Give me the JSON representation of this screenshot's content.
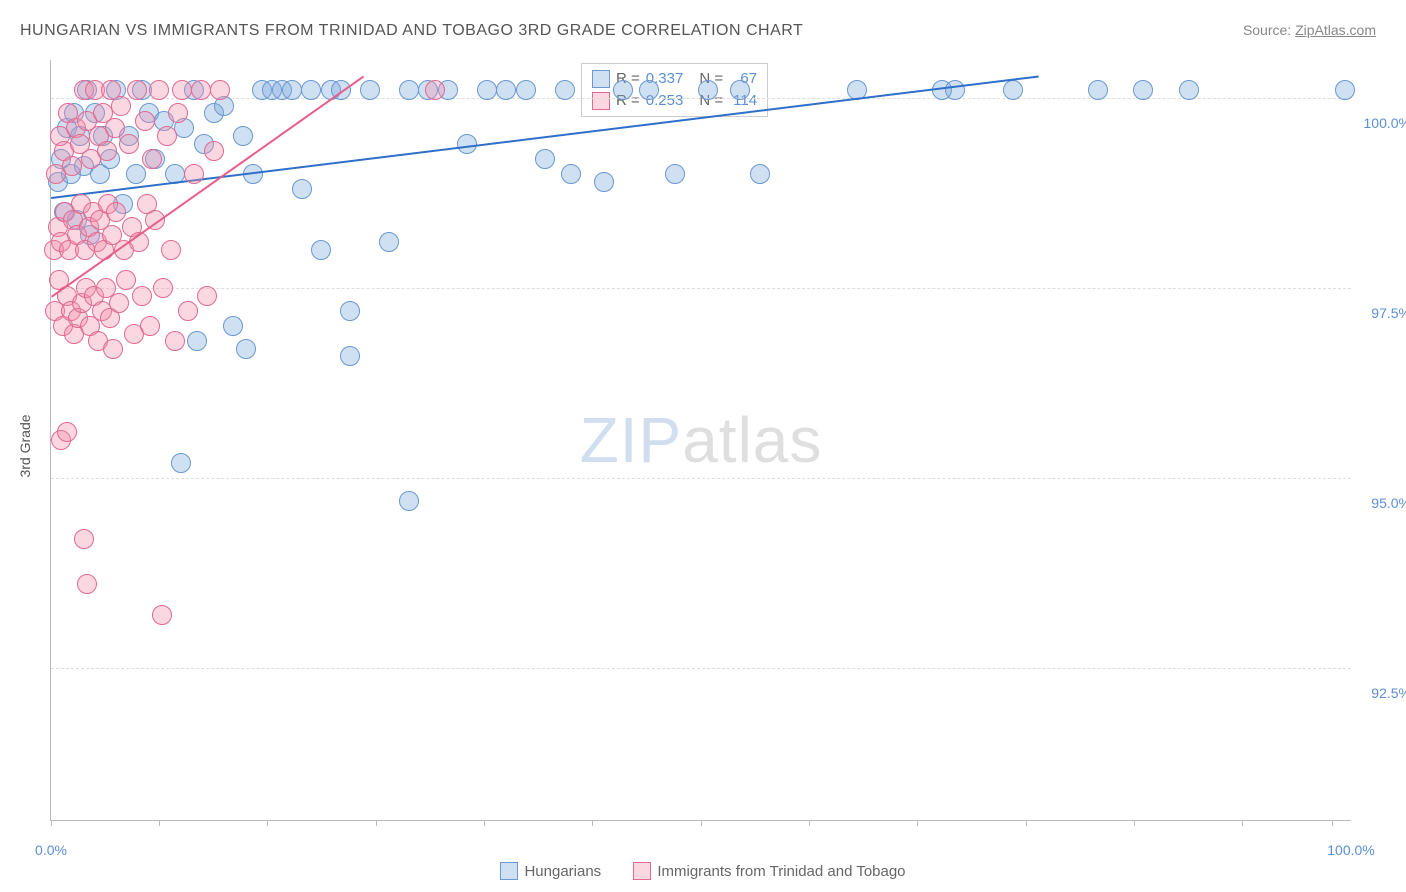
{
  "title": "HUNGARIAN VS IMMIGRANTS FROM TRINIDAD AND TOBAGO 3RD GRADE CORRELATION CHART",
  "source_label": "Source: ",
  "source_link_text": "ZipAtlas.com",
  "ylabel": "3rd Grade",
  "watermark_a": "ZIP",
  "watermark_b": "atlas",
  "chart": {
    "type": "scatter",
    "background_color": "#ffffff",
    "grid_color": "#dddddd",
    "axis_color": "#bbbbbb",
    "tick_label_color": "#5b8fd6",
    "label_color": "#555555",
    "xlim": [
      0,
      100
    ],
    "ylim": [
      90.5,
      100.5
    ],
    "yticks": [
      {
        "v": 100.0,
        "label": "100.0%"
      },
      {
        "v": 97.5,
        "label": "97.5%"
      },
      {
        "v": 95.0,
        "label": "95.0%"
      },
      {
        "v": 92.5,
        "label": "92.5%"
      }
    ],
    "xtick_positions": [
      0,
      8.3,
      16.6,
      25,
      33.3,
      41.6,
      50,
      58.3,
      66.6,
      75,
      83.3,
      91.6,
      98.5
    ],
    "xaxis_labels": [
      {
        "v": 0,
        "label": "0.0%"
      },
      {
        "v": 100,
        "label": "100.0%"
      }
    ],
    "marker_radius": 9,
    "marker_border_width": 1.5,
    "trend_line_width": 2
  },
  "series": [
    {
      "name": "Hungarians",
      "fill": "rgba(120,165,220,0.35)",
      "stroke": "#6a98d0",
      "trend_color": "#2e6fc9",
      "R": "0.337",
      "N": "67",
      "trend": {
        "x1": 0,
        "y1": 98.7,
        "x2": 76,
        "y2": 100.3
      },
      "points": [
        [
          0.5,
          98.9
        ],
        [
          0.8,
          99.2
        ],
        [
          1.0,
          98.5
        ],
        [
          1.2,
          99.6
        ],
        [
          1.5,
          99.0
        ],
        [
          1.8,
          99.8
        ],
        [
          2.0,
          98.4
        ],
        [
          2.2,
          99.5
        ],
        [
          2.5,
          99.1
        ],
        [
          2.8,
          100.1
        ],
        [
          3.0,
          98.2
        ],
        [
          3.4,
          99.8
        ],
        [
          3.8,
          99.0
        ],
        [
          4.0,
          99.5
        ],
        [
          4.5,
          99.2
        ],
        [
          5.0,
          100.1
        ],
        [
          5.5,
          98.6
        ],
        [
          6.0,
          99.5
        ],
        [
          6.5,
          99.0
        ],
        [
          7.0,
          100.1
        ],
        [
          7.5,
          99.8
        ],
        [
          8.0,
          99.2
        ],
        [
          8.7,
          99.7
        ],
        [
          9.5,
          99.0
        ],
        [
          10.2,
          99.6
        ],
        [
          11.0,
          100.1
        ],
        [
          11.8,
          99.4
        ],
        [
          12.5,
          99.8
        ],
        [
          13.3,
          99.9
        ],
        [
          14.0,
          97.0
        ],
        [
          14.8,
          99.5
        ],
        [
          15.5,
          99.0
        ],
        [
          16.2,
          100.1
        ],
        [
          17.0,
          100.1
        ],
        [
          17.8,
          100.1
        ],
        [
          18.5,
          100.1
        ],
        [
          19.3,
          98.8
        ],
        [
          20.0,
          100.1
        ],
        [
          20.8,
          98.0
        ],
        [
          21.5,
          100.1
        ],
        [
          22.3,
          100.1
        ],
        [
          23.0,
          97.2
        ],
        [
          24.5,
          100.1
        ],
        [
          26.0,
          98.1
        ],
        [
          27.5,
          100.1
        ],
        [
          29.0,
          100.1
        ],
        [
          30.5,
          100.1
        ],
        [
          32.0,
          99.4
        ],
        [
          33.5,
          100.1
        ],
        [
          35.0,
          100.1
        ],
        [
          36.5,
          100.1
        ],
        [
          38.0,
          99.2
        ],
        [
          39.5,
          100.1
        ],
        [
          40.0,
          99.0
        ],
        [
          42.5,
          98.9
        ],
        [
          44.0,
          100.1
        ],
        [
          46.0,
          100.1
        ],
        [
          48.0,
          99.0
        ],
        [
          50.5,
          100.1
        ],
        [
          53.0,
          100.1
        ],
        [
          54.5,
          99.0
        ],
        [
          62.0,
          100.1
        ],
        [
          68.5,
          100.1
        ],
        [
          69.5,
          100.1
        ],
        [
          74.0,
          100.1
        ],
        [
          80.5,
          100.1
        ],
        [
          84.0,
          100.1
        ],
        [
          87.5,
          100.1
        ],
        [
          99.5,
          100.1
        ],
        [
          11.2,
          96.8
        ],
        [
          15.0,
          96.7
        ],
        [
          23.0,
          96.6
        ],
        [
          27.5,
          94.7
        ],
        [
          10.0,
          95.2
        ]
      ]
    },
    {
      "name": "Immigrants from Trinidad and Tobago",
      "fill": "rgba(240,140,170,0.35)",
      "stroke": "#e06a92",
      "trend_color": "#e85d8a",
      "R": "0.253",
      "N": "114",
      "trend": {
        "x1": 0,
        "y1": 97.4,
        "x2": 24,
        "y2": 100.3
      },
      "points": [
        [
          0.2,
          98.0
        ],
        [
          0.3,
          97.2
        ],
        [
          0.4,
          99.0
        ],
        [
          0.5,
          98.3
        ],
        [
          0.6,
          97.6
        ],
        [
          0.7,
          99.5
        ],
        [
          0.8,
          98.1
        ],
        [
          0.9,
          97.0
        ],
        [
          1.0,
          99.3
        ],
        [
          1.1,
          98.5
        ],
        [
          1.2,
          97.4
        ],
        [
          1.3,
          99.8
        ],
        [
          1.4,
          98.0
        ],
        [
          1.5,
          97.2
        ],
        [
          1.6,
          99.1
        ],
        [
          1.7,
          98.4
        ],
        [
          1.8,
          96.9
        ],
        [
          1.9,
          99.6
        ],
        [
          2.0,
          98.2
        ],
        [
          2.1,
          97.1
        ],
        [
          2.2,
          99.4
        ],
        [
          2.3,
          98.6
        ],
        [
          2.4,
          97.3
        ],
        [
          2.5,
          100.1
        ],
        [
          2.6,
          98.0
        ],
        [
          2.7,
          97.5
        ],
        [
          2.8,
          99.7
        ],
        [
          2.9,
          98.3
        ],
        [
          3.0,
          97.0
        ],
        [
          3.1,
          99.2
        ],
        [
          3.2,
          98.5
        ],
        [
          3.3,
          97.4
        ],
        [
          3.4,
          100.1
        ],
        [
          3.5,
          98.1
        ],
        [
          3.6,
          96.8
        ],
        [
          3.7,
          99.5
        ],
        [
          3.8,
          98.4
        ],
        [
          3.9,
          97.2
        ],
        [
          4.0,
          99.8
        ],
        [
          4.1,
          98.0
        ],
        [
          4.2,
          97.5
        ],
        [
          4.3,
          99.3
        ],
        [
          4.4,
          98.6
        ],
        [
          4.5,
          97.1
        ],
        [
          4.6,
          100.1
        ],
        [
          4.7,
          98.2
        ],
        [
          4.8,
          96.7
        ],
        [
          4.9,
          99.6
        ],
        [
          5.0,
          98.5
        ],
        [
          5.2,
          97.3
        ],
        [
          5.4,
          99.9
        ],
        [
          5.6,
          98.0
        ],
        [
          5.8,
          97.6
        ],
        [
          6.0,
          99.4
        ],
        [
          6.2,
          98.3
        ],
        [
          6.4,
          96.9
        ],
        [
          6.6,
          100.1
        ],
        [
          6.8,
          98.1
        ],
        [
          7.0,
          97.4
        ],
        [
          7.2,
          99.7
        ],
        [
          7.4,
          98.6
        ],
        [
          7.6,
          97.0
        ],
        [
          7.8,
          99.2
        ],
        [
          8.0,
          98.4
        ],
        [
          8.3,
          100.1
        ],
        [
          8.6,
          97.5
        ],
        [
          8.9,
          99.5
        ],
        [
          9.2,
          98.0
        ],
        [
          9.5,
          96.8
        ],
        [
          9.8,
          99.8
        ],
        [
          10.1,
          100.1
        ],
        [
          10.5,
          97.2
        ],
        [
          11.0,
          99.0
        ],
        [
          11.5,
          100.1
        ],
        [
          12.0,
          97.4
        ],
        [
          12.5,
          99.3
        ],
        [
          13.0,
          100.1
        ],
        [
          29.5,
          100.1
        ],
        [
          0.8,
          95.5
        ],
        [
          1.2,
          95.6
        ],
        [
          2.5,
          94.2
        ],
        [
          2.8,
          93.6
        ],
        [
          8.5,
          93.2
        ]
      ]
    }
  ],
  "legend": {
    "r_label": "R =",
    "n_label": "N ="
  },
  "bottom_legend": {
    "items": [
      "Hungarians",
      "Immigrants from Trinidad and Tobago"
    ]
  }
}
